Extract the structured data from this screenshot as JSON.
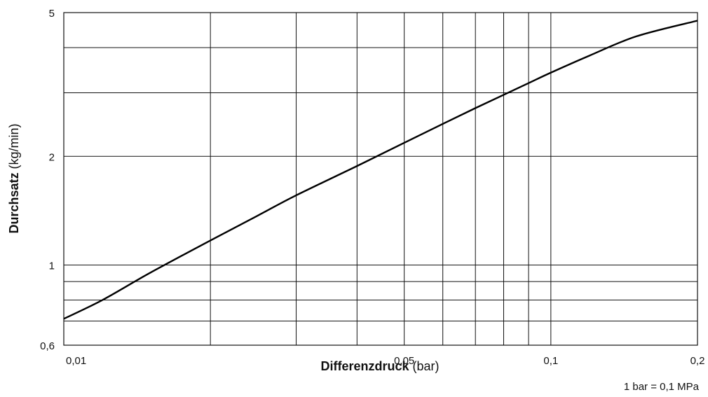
{
  "chart_data": {
    "type": "line",
    "xscale": "log",
    "yscale": "log",
    "xlim": [
      0.01,
      0.2
    ],
    "ylim": [
      0.6,
      5
    ],
    "grid": true,
    "x_ticks": [
      {
        "value": 0.01,
        "label": "0,01"
      },
      {
        "value": 0.05,
        "label": "0,05"
      },
      {
        "value": 0.1,
        "label": "0,1"
      },
      {
        "value": 0.2,
        "label": "0,2"
      }
    ],
    "y_ticks": [
      {
        "value": 0.6,
        "label": "0,6"
      },
      {
        "value": 1,
        "label": "1"
      },
      {
        "value": 2,
        "label": "2"
      },
      {
        "value": 5,
        "label": "5"
      }
    ],
    "x_gridlines": [
      0.02,
      0.03,
      0.04,
      0.05,
      0.06,
      0.07,
      0.08,
      0.09,
      0.1
    ],
    "y_gridlines": [
      0.7,
      0.8,
      0.9,
      1,
      2,
      3,
      4
    ],
    "xlabel_bold": "Differenzdruck",
    "xlabel_unit": "(bar)",
    "ylabel_bold": "Durchsatz",
    "ylabel_unit": "(kg/min)",
    "note": "1 bar = 0,1 MPa",
    "series": [
      {
        "x": [
          0.01,
          0.012,
          0.015,
          0.02,
          0.025,
          0.03,
          0.04,
          0.05,
          0.06,
          0.07,
          0.08,
          0.09,
          0.1,
          0.12,
          0.15,
          0.2
        ],
        "y": [
          0.71,
          0.8,
          0.95,
          1.17,
          1.37,
          1.56,
          1.88,
          2.18,
          2.46,
          2.72,
          2.96,
          3.19,
          3.41,
          3.8,
          4.3,
          4.75
        ]
      }
    ]
  }
}
